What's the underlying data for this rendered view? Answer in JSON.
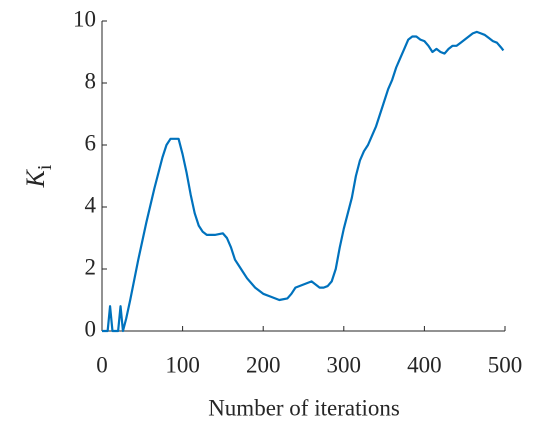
{
  "chart_data": {
    "type": "line",
    "xlabel": "Number of iterations",
    "ylabel": "K",
    "ylabel_subscript": "i",
    "xlim": [
      0,
      500
    ],
    "ylim": [
      0,
      10
    ],
    "xticks": [
      0,
      100,
      200,
      300,
      400,
      500
    ],
    "yticks": [
      0,
      2,
      4,
      6,
      8,
      10
    ],
    "grid": false,
    "x": [
      0,
      7,
      10,
      13,
      20,
      23,
      26,
      30,
      35,
      45,
      55,
      65,
      75,
      80,
      85,
      90,
      95,
      100,
      105,
      110,
      115,
      120,
      125,
      130,
      140,
      150,
      155,
      160,
      165,
      170,
      175,
      180,
      190,
      200,
      210,
      220,
      230,
      235,
      240,
      250,
      260,
      265,
      270,
      275,
      280,
      285,
      290,
      295,
      300,
      305,
      310,
      315,
      320,
      325,
      330,
      335,
      340,
      345,
      350,
      355,
      360,
      365,
      370,
      375,
      380,
      385,
      390,
      395,
      400,
      405,
      410,
      415,
      420,
      425,
      430,
      435,
      440,
      445,
      450,
      455,
      460,
      465,
      470,
      475,
      480,
      485,
      490,
      495,
      498
    ],
    "series": [
      {
        "name": "Ki",
        "color": "#0072bd",
        "values": [
          0,
          0,
          0.8,
          0,
          0,
          0.8,
          0,
          0.4,
          1.0,
          2.3,
          3.5,
          4.6,
          5.6,
          6.0,
          6.2,
          6.2,
          6.2,
          5.7,
          5.1,
          4.4,
          3.8,
          3.4,
          3.2,
          3.1,
          3.1,
          3.15,
          3.0,
          2.7,
          2.3,
          2.1,
          1.9,
          1.7,
          1.4,
          1.2,
          1.1,
          1.0,
          1.05,
          1.2,
          1.4,
          1.5,
          1.6,
          1.5,
          1.4,
          1.4,
          1.45,
          1.6,
          2.0,
          2.7,
          3.3,
          3.8,
          4.3,
          5.0,
          5.5,
          5.8,
          6.0,
          6.3,
          6.6,
          7.0,
          7.4,
          7.8,
          8.1,
          8.5,
          8.8,
          9.1,
          9.4,
          9.5,
          9.5,
          9.4,
          9.35,
          9.2,
          9.0,
          9.1,
          9.0,
          8.95,
          9.1,
          9.2,
          9.2,
          9.3,
          9.4,
          9.5,
          9.6,
          9.65,
          9.6,
          9.55,
          9.45,
          9.35,
          9.3,
          9.15,
          9.05
        ]
      }
    ]
  }
}
